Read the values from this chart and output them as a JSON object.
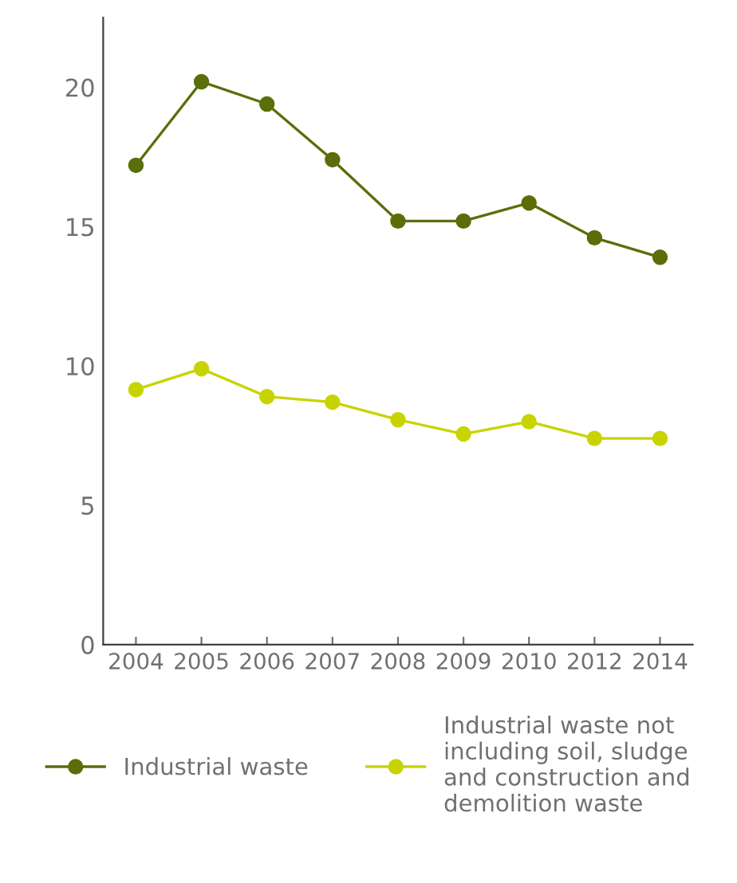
{
  "chart_data": {
    "type": "line",
    "categories": [
      "2004",
      "2005",
      "2006",
      "2007",
      "2008",
      "2009",
      "2010",
      "2012",
      "2014"
    ],
    "series": [
      {
        "name": "Industrial waste",
        "color": "#5a6e0a",
        "values": [
          17.2,
          20.2,
          19.4,
          17.4,
          15.2,
          15.2,
          15.85,
          14.6,
          13.9
        ]
      },
      {
        "name": "Industrial waste not\nincluding soil, sludge\nand construction and\ndemolition waste",
        "color": "#c8d400",
        "values": [
          9.15,
          9.9,
          8.9,
          8.7,
          8.07,
          7.56,
          8.0,
          7.4,
          7.4
        ]
      }
    ],
    "ylim": [
      0,
      22.5
    ],
    "yticks": [
      0,
      5,
      10,
      15,
      20
    ],
    "grid": false,
    "legend": "bottom",
    "marker": "circle",
    "line_style": "solid"
  }
}
